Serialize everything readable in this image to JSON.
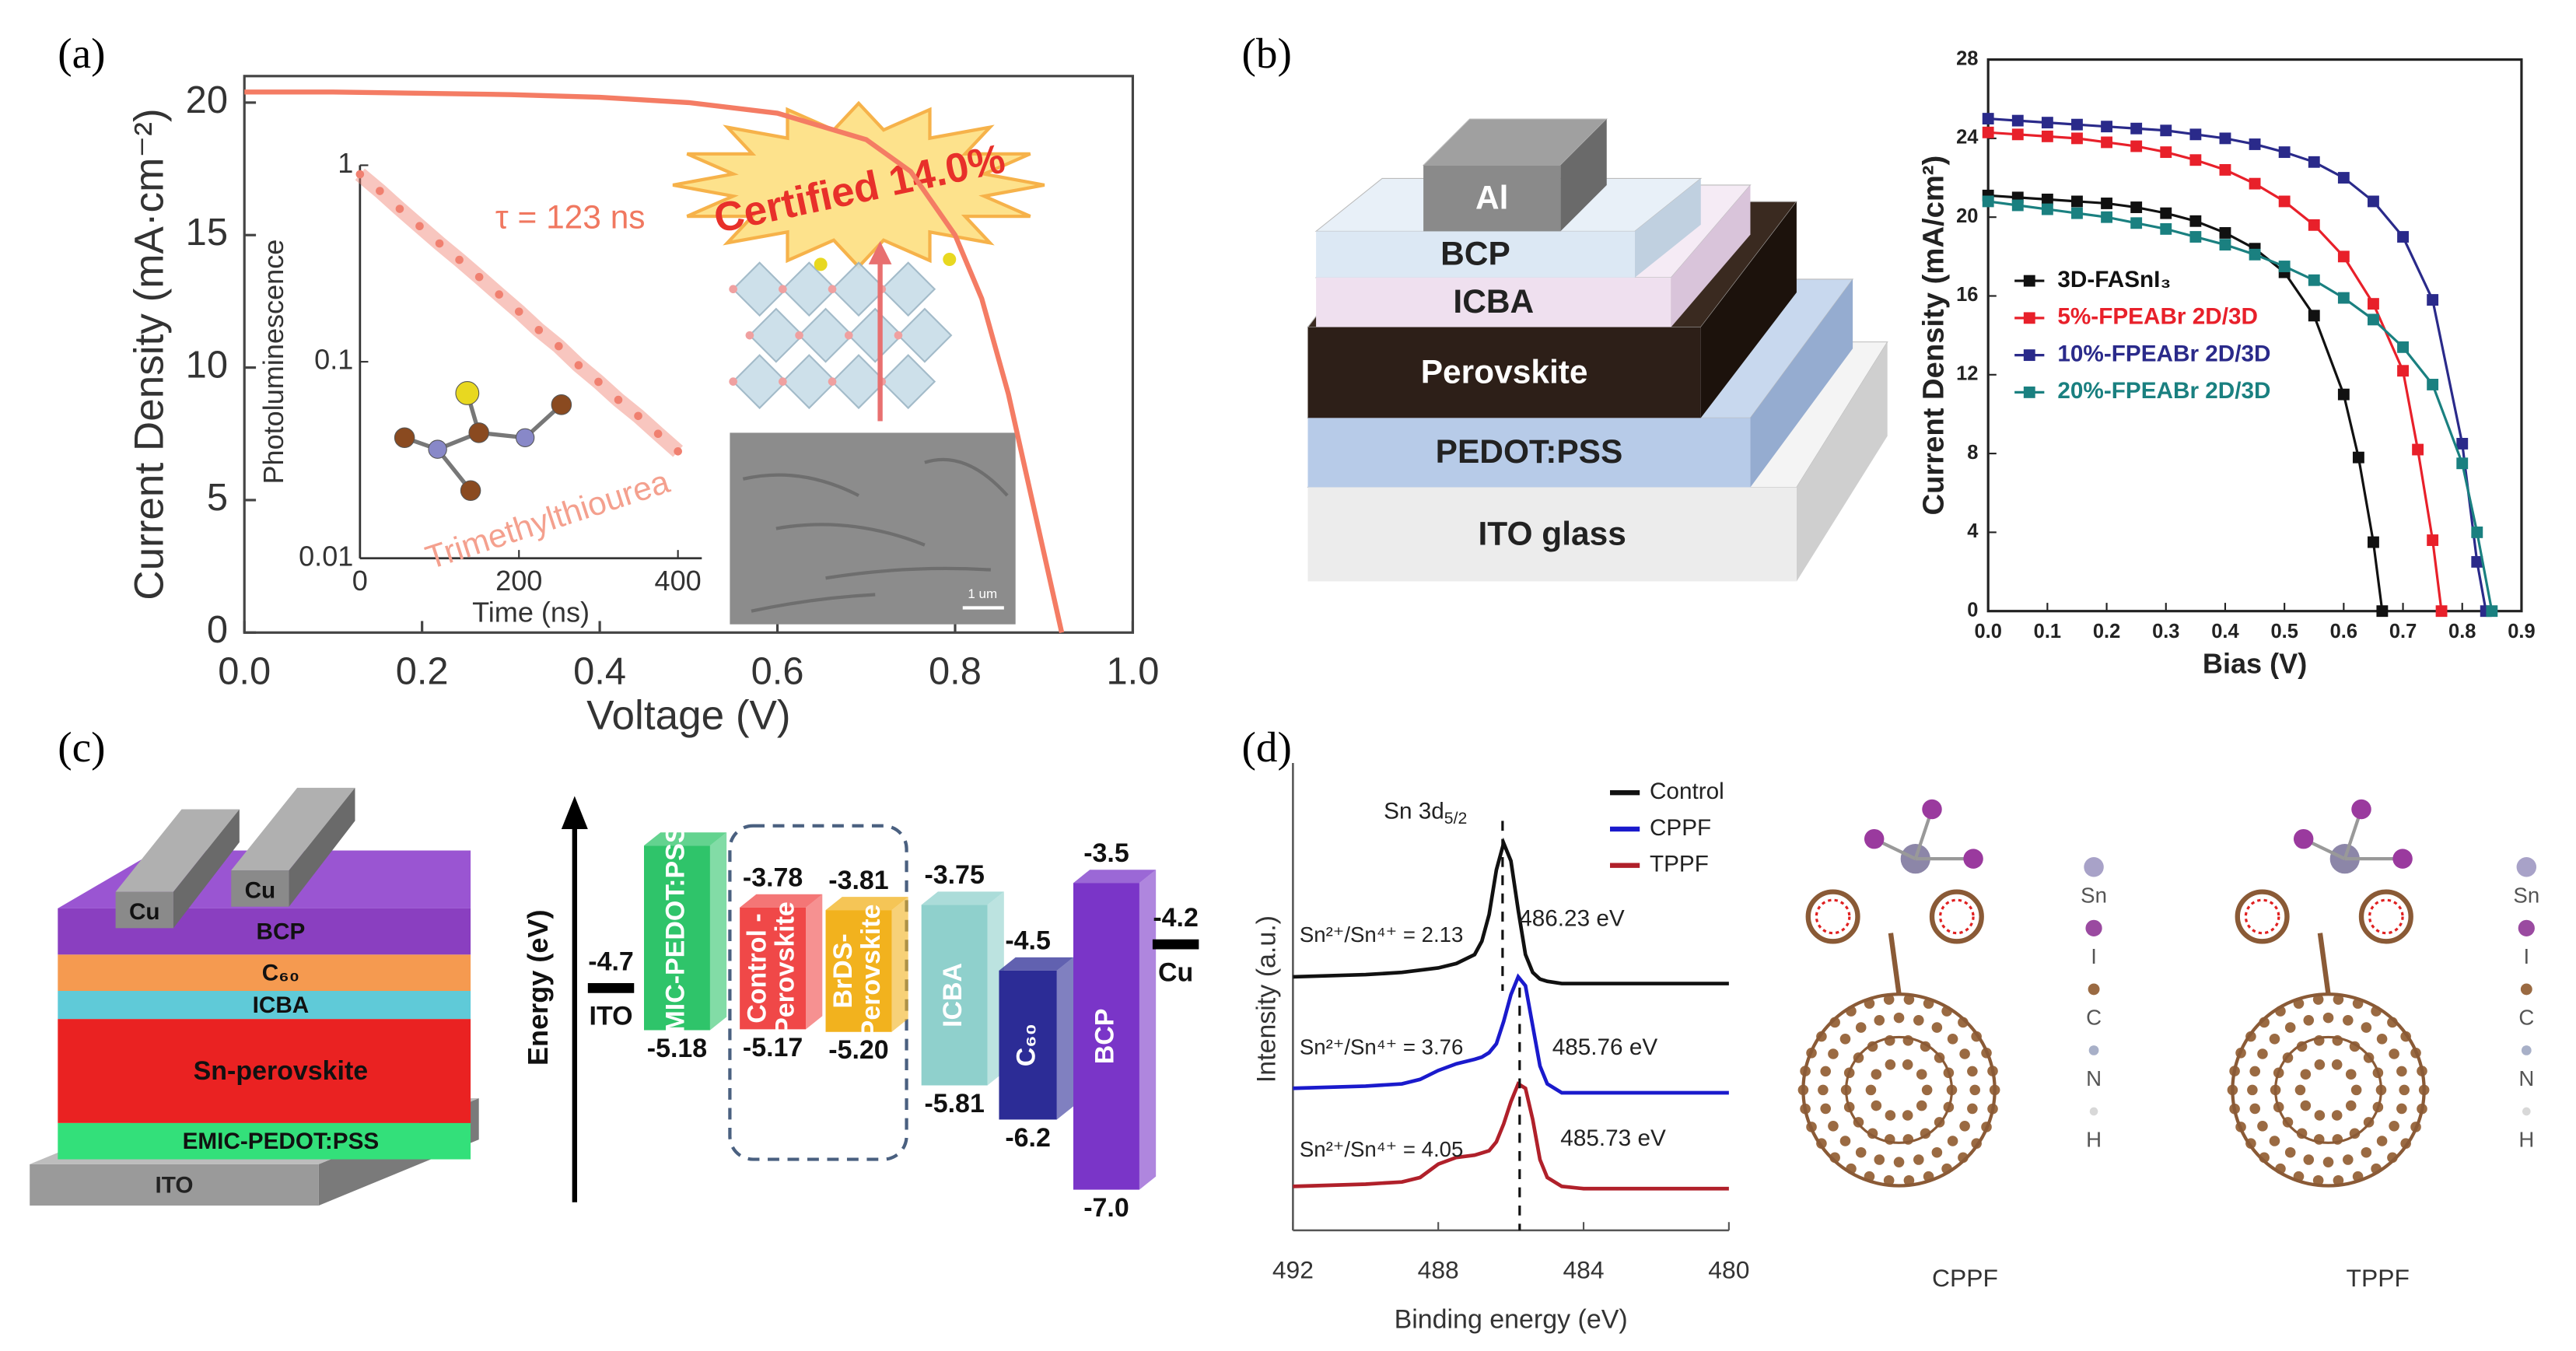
{
  "panels": {
    "a": {
      "label": "(a)",
      "chart": {
        "type": "line",
        "xlabel": "Voltage (V)",
        "ylabel": "Current Density (mA·cm⁻²)",
        "x": [
          0,
          0.1,
          0.2,
          0.3,
          0.4,
          0.5,
          0.6,
          0.7,
          0.75,
          0.8,
          0.83,
          0.86,
          0.88,
          0.9,
          0.92
        ],
        "series": [
          {
            "color": "#f47c64",
            "values": [
              20.4,
              20.4,
              20.35,
              20.3,
              20.2,
              20.0,
              19.6,
              18.6,
              17.4,
              15.0,
              12.6,
              9.0,
              6.0,
              3.0,
              0
            ]
          }
        ],
        "xlim": [
          0,
          1
        ],
        "ylim": [
          0,
          21
        ],
        "xticks": [
          {
            "value": 0,
            "label": "0.0"
          },
          0.2,
          0.4,
          0.6,
          0.8,
          {
            "value": 1,
            "label": "1.0"
          }
        ],
        "yticks": [
          0,
          5,
          10,
          15,
          20
        ]
      },
      "inset": {
        "type": "scatter",
        "log_y": true,
        "xlabel": "Time (ns)",
        "ylabel": "Photoluminescence",
        "annotation": "τ = 123 ns",
        "x": [
          0,
          25,
          50,
          75,
          100,
          125,
          150,
          175,
          200,
          225,
          250,
          275,
          300,
          325,
          350,
          375,
          400
        ],
        "values": [
          0.9,
          0.74,
          0.6,
          0.49,
          0.4,
          0.33,
          0.27,
          0.22,
          0.18,
          0.145,
          0.12,
          0.096,
          0.079,
          0.064,
          0.053,
          0.043,
          0.035
        ],
        "color": "#f08070",
        "xlim": [
          0,
          430
        ],
        "ylim": [
          0.01,
          1
        ],
        "xticks": [
          0,
          200,
          400
        ],
        "yticks": [
          1,
          0.1,
          0.01
        ]
      },
      "molecule": "Trimethylthiourea",
      "badge": "Certified 14.0%",
      "scale_bar": "1 um"
    },
    "b": {
      "label": "(b)",
      "layers": [
        "ITO glass",
        "PEDOT:PSS",
        "Perovskite",
        "ICBA",
        "BCP",
        "Al"
      ],
      "chart": {
        "type": "line",
        "markers": "square",
        "xlabel": "Bias (V)",
        "ylabel": "Current Density (mA/cm²)",
        "xlim": [
          0,
          0.9
        ],
        "ylim": [
          0,
          28
        ],
        "xticks": [
          {
            "value": 0,
            "label": "0.0"
          },
          0.1,
          0.2,
          0.3,
          0.4,
          0.5,
          0.6,
          0.7,
          0.8,
          0.9
        ],
        "yticks": [
          0,
          4,
          8,
          12,
          16,
          20,
          24,
          28
        ],
        "legend": "center-left",
        "series": [
          {
            "name": "3D-FASnI₃",
            "color": "#111111",
            "x": [
              0,
              0.05,
              0.1,
              0.15,
              0.2,
              0.25,
              0.3,
              0.35,
              0.4,
              0.45,
              0.5,
              0.55,
              0.6,
              0.625,
              0.65,
              0.665
            ],
            "values": [
              21.1,
              21.0,
              20.9,
              20.8,
              20.7,
              20.5,
              20.2,
              19.8,
              19.2,
              18.4,
              17.2,
              15.0,
              11.0,
              7.8,
              3.5,
              0
            ]
          },
          {
            "name": "5%-FPEABr 2D/3D",
            "color": "#e8202a",
            "x": [
              0,
              0.05,
              0.1,
              0.15,
              0.2,
              0.25,
              0.3,
              0.35,
              0.4,
              0.45,
              0.5,
              0.55,
              0.6,
              0.65,
              0.7,
              0.725,
              0.75,
              0.765
            ],
            "values": [
              24.3,
              24.2,
              24.1,
              24.0,
              23.8,
              23.6,
              23.3,
              22.9,
              22.4,
              21.7,
              20.8,
              19.6,
              18.0,
              15.6,
              12.2,
              8.2,
              3.6,
              0
            ]
          },
          {
            "name": "10%-FPEABr 2D/3D",
            "color": "#2a2a8a",
            "x": [
              0,
              0.05,
              0.1,
              0.15,
              0.2,
              0.25,
              0.3,
              0.35,
              0.4,
              0.45,
              0.5,
              0.55,
              0.6,
              0.65,
              0.7,
              0.75,
              0.8,
              0.825,
              0.84
            ],
            "values": [
              25.0,
              24.9,
              24.8,
              24.7,
              24.6,
              24.5,
              24.4,
              24.2,
              24.0,
              23.7,
              23.3,
              22.8,
              22.0,
              20.8,
              19.0,
              15.8,
              8.5,
              2.5,
              0
            ]
          },
          {
            "name": "20%-FPEABr 2D/3D",
            "color": "#1a8080",
            "x": [
              0,
              0.05,
              0.1,
              0.15,
              0.2,
              0.25,
              0.3,
              0.35,
              0.4,
              0.45,
              0.5,
              0.55,
              0.6,
              0.65,
              0.7,
              0.75,
              0.8,
              0.825,
              0.85
            ],
            "values": [
              20.8,
              20.6,
              20.4,
              20.2,
              20.0,
              19.7,
              19.4,
              19.0,
              18.6,
              18.1,
              17.5,
              16.8,
              15.9,
              14.8,
              13.4,
              11.5,
              7.5,
              4.0,
              0
            ]
          }
        ]
      }
    },
    "c": {
      "label": "(c)",
      "layers": [
        "ITO",
        "EMIC-PEDOT:PSS",
        "Sn-perovskite",
        "ICBA",
        "C₆₀",
        "BCP"
      ],
      "electrode": "Cu",
      "energy": {
        "ylabel": "Energy (eV)",
        "ylim": [
          -7.2,
          -3.3
        ],
        "electrodes": [
          {
            "name": "ITO",
            "value": -4.7
          },
          {
            "name": "Cu",
            "value": -4.2
          }
        ],
        "bands": [
          {
            "name": [
              "EMIC-PEDOT:PSS"
            ],
            "color": "#2fc46a",
            "bottom": -5.18
          },
          {
            "name": [
              "Control -",
              "Perovskite"
            ],
            "color": "#f04848",
            "top": -3.78,
            "bottom": -5.17
          },
          {
            "name": [
              "BrDS-",
              "Perovskite"
            ],
            "color": "#f2b21e",
            "top": -3.81,
            "bottom": {
              "value": -5.2,
              "label": "-5.20"
            }
          },
          {
            "name": [
              "ICBA"
            ],
            "color": "#8fd0cc",
            "top": -3.75,
            "bottom": -5.81
          },
          {
            "name": [
              "C₆₀"
            ],
            "color": "#2c2c96",
            "top": -4.5,
            "bottom": -6.2
          },
          {
            "name": [
              "BCP"
            ],
            "color": "#7a35c8",
            "top": -3.5,
            "bottom": {
              "value": -7,
              "label": "-7.0"
            }
          }
        ]
      }
    },
    "d": {
      "label": "(d)",
      "chart": {
        "type": "line",
        "xlabel": "Binding energy (eV)",
        "ylabel": "Intensity (a.u.)",
        "xlim": [
          492,
          480
        ],
        "ylim": [
          0,
          10
        ],
        "xticks": [
          492,
          488,
          484,
          480
        ],
        "legend": "upper-right",
        "peak": [
          "Sn 3d",
          "5/2"
        ],
        "x": [
          492,
          490,
          489,
          488.5,
          488,
          487.5,
          487,
          486.8,
          486.6,
          486.4,
          486.2,
          486,
          485.8,
          485.6,
          485.4,
          485.2,
          485,
          484.6,
          484,
          482,
          480
        ],
        "series": [
          {
            "name": "Control",
            "color": "#111111",
            "values": [
              5.5,
              5.55,
              5.6,
              5.65,
              5.7,
              5.8,
              6.0,
              6.3,
              6.9,
              7.9,
              8.5,
              8.1,
              7.0,
              6.0,
              5.6,
              5.45,
              5.4,
              5.35,
              5.35,
              5.35,
              5.35
            ]
          },
          {
            "name": "CPPF",
            "color": "#1a1acc",
            "values": [
              3.0,
              3.05,
              3.1,
              3.2,
              3.4,
              3.55,
              3.65,
              3.7,
              3.8,
              4.0,
              4.5,
              5.1,
              5.5,
              5.3,
              4.4,
              3.5,
              3.1,
              2.9,
              2.9,
              2.9,
              2.9
            ]
          },
          {
            "name": "TPPF",
            "color": "#b0202a",
            "values": [
              0.8,
              0.85,
              0.9,
              1.0,
              1.3,
              1.45,
              1.5,
              1.55,
              1.6,
              1.8,
              2.2,
              2.7,
              3.1,
              3.0,
              2.3,
              1.4,
              1.0,
              0.8,
              0.75,
              0.75,
              0.75
            ]
          }
        ],
        "annotations": [
          {
            "value": 486.23,
            "label": "486.23 eV"
          },
          {
            "value": 485.76,
            "label": "485.76 eV"
          },
          {
            "value": 485.73,
            "label": "485.73 eV"
          }
        ],
        "ratios": [
          "Sn²⁺/Sn⁴⁺ = 2.13",
          "Sn²⁺/Sn⁴⁺ = 3.76",
          "Sn²⁺/Sn⁴⁺ = 4.05"
        ]
      },
      "molecules": [
        "CPPF",
        "TPPF"
      ],
      "elements": [
        "Sn",
        "I",
        "C",
        "N",
        "H"
      ]
    }
  }
}
